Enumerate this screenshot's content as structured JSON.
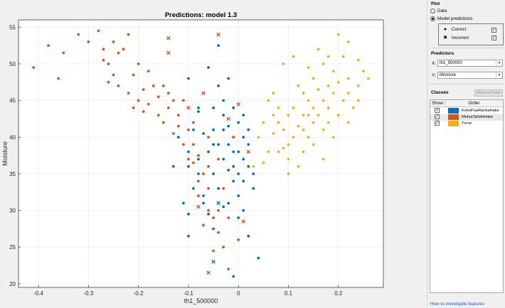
{
  "chart_data": {
    "type": "scatter",
    "title": "Predictions: model 1.3",
    "xlabel": "th1_500000",
    "ylabel": "Moisture",
    "xlim": [
      -0.44,
      0.29
    ],
    "ylim": [
      19.5,
      56
    ],
    "xticks": [
      -0.4,
      -0.3,
      -0.2,
      -0.1,
      0,
      0.1,
      0.2
    ],
    "xtick_labels": [
      "-0.4",
      "-0.3",
      "-0.2",
      "-0.1",
      "0",
      "0.1",
      "0.2"
    ],
    "yticks": [
      20,
      25,
      30,
      35,
      40,
      45,
      50,
      55
    ],
    "ytick_labels": [
      "20",
      "25",
      "30",
      "35",
      "40",
      "45",
      "50",
      "55"
    ],
    "grid": true,
    "series": [
      {
        "name": "KokoPuuRankaHake",
        "color": "#0072BD",
        "correct": [
          [
            -0.11,
            31
          ],
          [
            -0.1,
            29.5
          ],
          [
            -0.1,
            26.5
          ],
          [
            -0.1,
            36
          ],
          [
            -0.1,
            38
          ],
          [
            -0.09,
            33
          ],
          [
            -0.09,
            41
          ],
          [
            -0.08,
            43.5
          ],
          [
            -0.08,
            35
          ],
          [
            -0.08,
            37
          ],
          [
            -0.07,
            40.5
          ],
          [
            -0.07,
            32
          ],
          [
            -0.06,
            29.5
          ],
          [
            -0.06,
            38
          ],
          [
            -0.06,
            49.5
          ],
          [
            -0.05,
            41
          ],
          [
            -0.05,
            44
          ],
          [
            -0.05,
            35
          ],
          [
            -0.05,
            27.5
          ],
          [
            -0.04,
            39
          ],
          [
            -0.04,
            52.5
          ],
          [
            -0.04,
            47
          ],
          [
            -0.04,
            33
          ],
          [
            -0.03,
            30.5
          ],
          [
            -0.03,
            41
          ],
          [
            -0.03,
            45
          ],
          [
            -0.03,
            37
          ],
          [
            -0.02,
            39
          ],
          [
            -0.02,
            41.5
          ],
          [
            -0.02,
            48
          ],
          [
            -0.02,
            31
          ],
          [
            -0.01,
            34
          ],
          [
            -0.01,
            36
          ],
          [
            -0.01,
            38
          ],
          [
            -0.01,
            44
          ],
          [
            -0.01,
            40
          ],
          [
            -0.01,
            21
          ],
          [
            0.0,
            42
          ],
          [
            0.0,
            38
          ],
          [
            0.0,
            35
          ],
          [
            0.0,
            32
          ],
          [
            0.01,
            43
          ],
          [
            0.01,
            40
          ],
          [
            0.01,
            37
          ],
          [
            0.01,
            30
          ],
          [
            0.01,
            34
          ],
          [
            0.02,
            39
          ],
          [
            0.02,
            36
          ],
          [
            0.02,
            41
          ],
          [
            0.03,
            35
          ],
          [
            0.03,
            33
          ],
          [
            0.04,
            23.5
          ],
          [
            -0.1,
            48
          ],
          [
            -0.08,
            44
          ],
          [
            -0.07,
            31
          ],
          [
            -0.05,
            39
          ],
          [
            -0.12,
            40
          ],
          [
            -0.13,
            36
          ],
          [
            -0.03,
            43
          ],
          [
            0.02,
            26.5
          ],
          [
            0.0,
            29
          ],
          [
            -0.02,
            35.5
          ]
        ],
        "incorrect": [
          [
            -0.05,
            23
          ],
          [
            -0.04,
            31
          ]
        ]
      },
      {
        "name": "MetsaTahdeHake",
        "color": "#D95319",
        "correct": [
          [
            -0.41,
            49.5
          ],
          [
            -0.38,
            52.5
          ],
          [
            -0.36,
            48
          ],
          [
            -0.35,
            51.5
          ],
          [
            -0.32,
            54
          ],
          [
            -0.3,
            53
          ],
          [
            -0.28,
            54.5
          ],
          [
            -0.27,
            52
          ],
          [
            -0.26,
            50
          ],
          [
            -0.25,
            53
          ],
          [
            -0.24,
            51.5
          ],
          [
            -0.23,
            52
          ],
          [
            -0.22,
            54
          ],
          [
            -0.21,
            48.5
          ],
          [
            -0.2,
            50
          ],
          [
            -0.2,
            45
          ],
          [
            -0.19,
            46.5
          ],
          [
            -0.18,
            44.5
          ],
          [
            -0.17,
            47
          ],
          [
            -0.16,
            43
          ],
          [
            -0.16,
            45.5
          ],
          [
            -0.15,
            42
          ],
          [
            -0.14,
            44
          ],
          [
            -0.14,
            46
          ],
          [
            -0.13,
            45
          ],
          [
            -0.13,
            40.5
          ],
          [
            -0.12,
            43
          ],
          [
            -0.12,
            41.5
          ],
          [
            -0.11,
            39
          ],
          [
            -0.11,
            45
          ],
          [
            -0.1,
            37
          ],
          [
            -0.1,
            41
          ],
          [
            -0.09,
            36.5
          ],
          [
            -0.09,
            39
          ],
          [
            -0.08,
            34
          ],
          [
            -0.08,
            37.5
          ],
          [
            -0.08,
            32
          ],
          [
            -0.07,
            35
          ],
          [
            -0.07,
            28
          ],
          [
            -0.06,
            30
          ],
          [
            -0.06,
            33
          ],
          [
            -0.06,
            36
          ],
          [
            -0.05,
            29
          ],
          [
            -0.05,
            24.5
          ],
          [
            -0.04,
            27
          ],
          [
            -0.04,
            30
          ],
          [
            -0.03,
            25
          ],
          [
            -0.03,
            33
          ],
          [
            -0.02,
            29
          ],
          [
            -0.02,
            22
          ],
          [
            -0.01,
            40
          ],
          [
            0.0,
            26
          ],
          [
            -0.27,
            50.5
          ],
          [
            -0.25,
            48.5
          ],
          [
            -0.22,
            46
          ],
          [
            -0.18,
            49
          ],
          [
            -0.24,
            47
          ],
          [
            -0.21,
            44
          ],
          [
            -0.15,
            47
          ],
          [
            -0.09,
            42
          ],
          [
            -0.06,
            40
          ],
          [
            -0.04,
            37
          ],
          [
            -0.26,
            47.5
          ],
          [
            -0.19,
            43.5
          ]
        ],
        "incorrect": [
          [
            -0.14,
            53.5
          ],
          [
            -0.14,
            51.5
          ],
          [
            -0.1,
            44
          ],
          [
            -0.07,
            46
          ],
          [
            -0.04,
            54
          ],
          [
            -0.06,
            21.5
          ],
          [
            -0.08,
            30.5
          ],
          [
            0.01,
            28.5
          ],
          [
            0.0,
            44.5
          ],
          [
            -0.02,
            42.5
          ],
          [
            0.02,
            38
          ]
        ]
      },
      {
        "name": "Turve",
        "color": "#EDB120",
        "correct": [
          [
            0.03,
            36
          ],
          [
            0.04,
            40
          ],
          [
            0.05,
            42
          ],
          [
            0.05,
            36.5
          ],
          [
            0.06,
            38
          ],
          [
            0.07,
            46
          ],
          [
            0.07,
            40.5
          ],
          [
            0.08,
            42
          ],
          [
            0.08,
            44
          ],
          [
            0.09,
            38.5
          ],
          [
            0.09,
            41
          ],
          [
            0.1,
            43
          ],
          [
            0.1,
            39
          ],
          [
            0.1,
            35
          ],
          [
            0.11,
            44
          ],
          [
            0.11,
            40
          ],
          [
            0.12,
            41.5
          ],
          [
            0.12,
            47
          ],
          [
            0.13,
            43
          ],
          [
            0.13,
            38
          ],
          [
            0.13,
            46
          ],
          [
            0.14,
            45
          ],
          [
            0.14,
            40
          ],
          [
            0.15,
            42
          ],
          [
            0.15,
            48
          ],
          [
            0.15,
            44
          ],
          [
            0.16,
            43
          ],
          [
            0.16,
            46.5
          ],
          [
            0.17,
            50
          ],
          [
            0.17,
            45
          ],
          [
            0.17,
            41
          ],
          [
            0.18,
            47
          ],
          [
            0.18,
            44
          ],
          [
            0.19,
            49
          ],
          [
            0.19,
            46
          ],
          [
            0.2,
            43
          ],
          [
            0.2,
            47.5
          ],
          [
            0.21,
            45
          ],
          [
            0.21,
            51
          ],
          [
            0.22,
            48
          ],
          [
            0.22,
            46
          ],
          [
            0.23,
            44
          ],
          [
            0.24,
            50.5
          ],
          [
            0.24,
            47
          ],
          [
            0.25,
            49
          ],
          [
            0.26,
            48
          ],
          [
            0.2,
            54
          ],
          [
            0.22,
            53
          ],
          [
            0.18,
            51
          ],
          [
            0.16,
            52
          ],
          [
            0.14,
            49.5
          ],
          [
            0.11,
            51
          ],
          [
            0.08,
            38
          ],
          [
            0.07,
            43
          ],
          [
            0.12,
            36
          ],
          [
            0.1,
            37
          ],
          [
            0.15,
            39
          ],
          [
            0.17,
            37
          ],
          [
            0.19,
            40
          ],
          [
            0.09,
            50
          ],
          [
            0.13,
            41
          ],
          [
            0.06,
            45
          ],
          [
            0.22,
            42
          ],
          [
            0.24,
            45
          ],
          [
            0.18,
            42
          ],
          [
            0.14,
            43
          ]
        ],
        "incorrect": []
      }
    ]
  },
  "panel": {
    "plot_section": "Plot",
    "radio_data": "Data",
    "radio_model": "Model predictions",
    "legend_correct": "Correct",
    "legend_incorrect": "Incorrect",
    "legend_correct_symbol": "●",
    "legend_incorrect_symbol": "✖",
    "check_mark": "✓",
    "predictors_section": "Predictors",
    "x_label": "X:",
    "x_value": "th1_500000",
    "y_label": "Y:",
    "y_value": "Moisture",
    "classes_section": "Classes",
    "move_to_front": "Move to Front",
    "col_show": "Show",
    "col_order": "Order",
    "classes": [
      {
        "name": "KokoPuuRankaHake",
        "color": "#0072BD"
      },
      {
        "name": "MetsaTahdeHake",
        "color": "#D95319"
      },
      {
        "name": "Turve",
        "color": "#EDB120"
      }
    ],
    "dropdown_arrow": "▼",
    "link_text": "How to investigate features"
  }
}
